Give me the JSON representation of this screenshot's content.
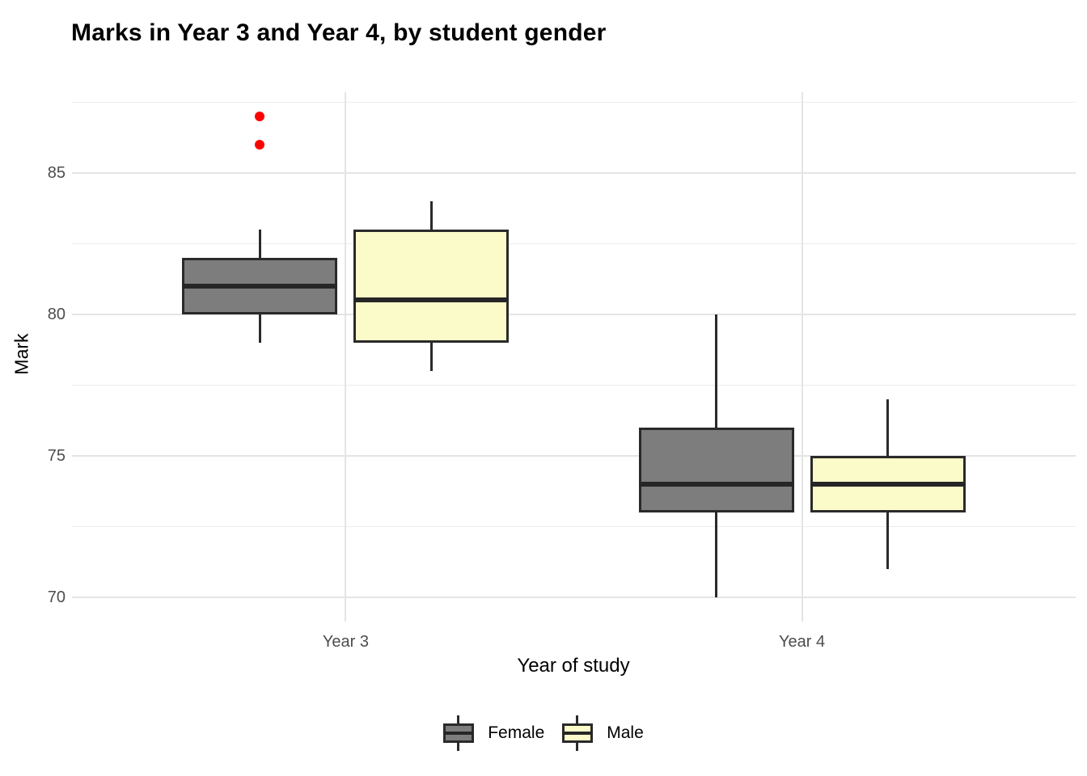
{
  "title": "Marks in Year 3 and Year 4, by student gender",
  "chart_data": {
    "type": "boxplot",
    "title": "Marks in Year 3 and Year 4, by student gender",
    "xlabel": "Year of study",
    "ylabel": "Mark",
    "categories": [
      "Year 3",
      "Year 4"
    ],
    "ylim": [
      69.15,
      87.85
    ],
    "yticks": [
      70,
      75,
      80,
      85
    ],
    "ytick_labels": [
      "70",
      "75",
      "80",
      "85"
    ],
    "yticks_minor": [
      72.5,
      77.5,
      82.5,
      87.5
    ],
    "grid": true,
    "legend_position": "bottom",
    "series": [
      {
        "name": "Female",
        "fill": "#7D7D7D",
        "boxes": [
          {
            "category": "Year 3",
            "whisker_low": 79,
            "q1": 80,
            "median": 81,
            "q3": 82,
            "whisker_high": 83,
            "outliers": [
              86,
              87
            ]
          },
          {
            "category": "Year 4",
            "whisker_low": 70,
            "q1": 73,
            "median": 74,
            "q3": 76,
            "whisker_high": 80,
            "outliers": []
          }
        ]
      },
      {
        "name": "Male",
        "fill": "#FBFBC9",
        "boxes": [
          {
            "category": "Year 3",
            "whisker_low": 78,
            "q1": 79,
            "median": 80.5,
            "q3": 83,
            "whisker_high": 84,
            "outliers": []
          },
          {
            "category": "Year 4",
            "whisker_low": 71,
            "q1": 73,
            "median": 74,
            "q3": 75,
            "whisker_high": 77,
            "outliers": []
          }
        ]
      }
    ],
    "colors": {
      "edge": "#2A2A2A",
      "median": "#262626",
      "outlier": "#FF0000",
      "grid": "#E4E4E4",
      "tick_label": "#4D4D4D",
      "background": "#FFFFFF"
    },
    "legend_entries": [
      {
        "label": "Female",
        "fill": "#7D7D7D"
      },
      {
        "label": "Male",
        "fill": "#FBFBC9"
      }
    ]
  }
}
